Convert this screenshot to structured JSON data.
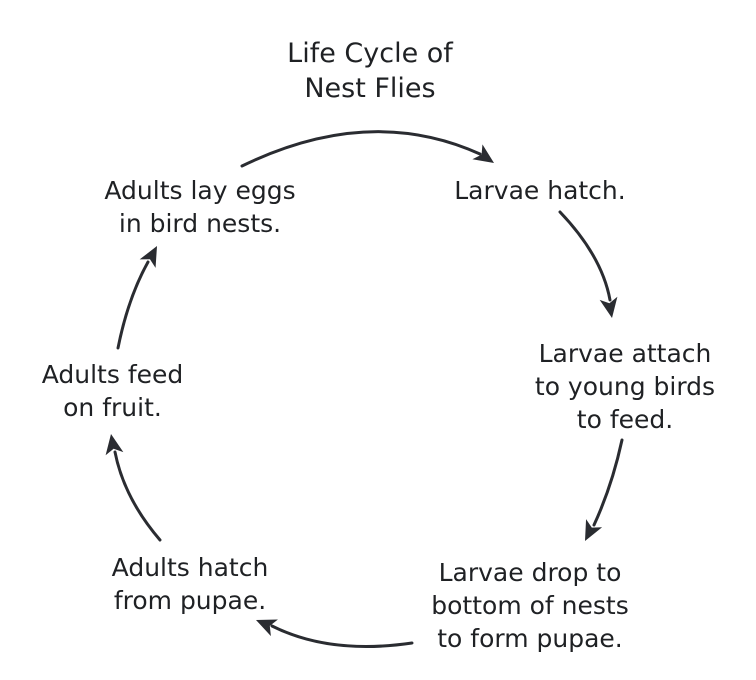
{
  "title": {
    "line1": "Life Cycle of",
    "line2": "Nest Flies"
  },
  "stages": [
    {
      "line1": "Adults lay eggs",
      "line2": "in bird nests.",
      "line3": ""
    },
    {
      "line1": "Larvae hatch.",
      "line2": "",
      "line3": ""
    },
    {
      "line1": "Larvae attach",
      "line2": "to young birds",
      "line3": "to feed."
    },
    {
      "line1": "Larvae drop to",
      "line2": "bottom of nests",
      "line3": "to form pupae."
    },
    {
      "line1": "Adults hatch",
      "line2": "from pupae.",
      "line3": ""
    },
    {
      "line1": "Adults feed",
      "line2": "on fruit.",
      "line3": ""
    }
  ],
  "colors": {
    "text": "#1f2124",
    "arrow": "#2a2c31",
    "background": "#ffffff"
  }
}
